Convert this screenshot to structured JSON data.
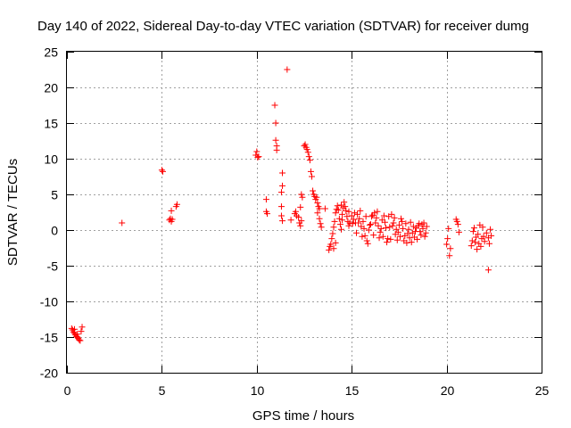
{
  "chart_data": {
    "type": "scatter",
    "title": "Day 140 of 2022, Sidereal Day-to-day VTEC variation (SDTVAR) for receiver dumg",
    "xlabel": "GPS time / hours",
    "ylabel": "SDTVAR / TECUs",
    "xlim": [
      0,
      25
    ],
    "ylim": [
      -20,
      25
    ],
    "xticks": [
      0,
      5,
      10,
      15,
      20,
      25
    ],
    "yticks": [
      -20,
      -15,
      -10,
      -5,
      0,
      5,
      10,
      15,
      20,
      25
    ],
    "grid": true,
    "marker": "+",
    "marker_color": "#ff0000",
    "series": [
      {
        "name": "dumg",
        "points": [
          [
            0.25,
            -13.8
          ],
          [
            0.3,
            -14.0
          ],
          [
            0.35,
            -14.3
          ],
          [
            0.4,
            -14.5
          ],
          [
            0.45,
            -14.7
          ],
          [
            0.5,
            -14.9
          ],
          [
            0.55,
            -15.0
          ],
          [
            0.6,
            -15.2
          ],
          [
            0.65,
            -15.4
          ],
          [
            0.7,
            -15.5
          ],
          [
            0.75,
            -14.2
          ],
          [
            0.8,
            -13.6
          ],
          [
            0.4,
            -13.9
          ],
          [
            0.55,
            -14.6
          ],
          [
            2.9,
            1.0
          ],
          [
            5.0,
            8.4
          ],
          [
            5.05,
            8.2
          ],
          [
            5.4,
            1.4
          ],
          [
            5.45,
            1.6
          ],
          [
            5.5,
            1.2
          ],
          [
            5.55,
            1.5
          ],
          [
            5.5,
            2.7
          ],
          [
            5.75,
            3.3
          ],
          [
            5.8,
            3.6
          ],
          [
            10.0,
            11.0
          ],
          [
            9.95,
            10.5
          ],
          [
            10.05,
            10.2
          ],
          [
            10.1,
            10.3
          ],
          [
            10.5,
            4.3
          ],
          [
            10.5,
            2.6
          ],
          [
            10.55,
            2.3
          ],
          [
            10.95,
            17.5
          ],
          [
            11.0,
            15.0
          ],
          [
            11.0,
            12.6
          ],
          [
            11.05,
            11.8
          ],
          [
            11.05,
            11.2
          ],
          [
            11.35,
            8.0
          ],
          [
            11.35,
            6.2
          ],
          [
            11.3,
            5.3
          ],
          [
            11.3,
            3.3
          ],
          [
            11.3,
            2.0
          ],
          [
            11.35,
            1.3
          ],
          [
            11.6,
            22.5
          ],
          [
            11.8,
            1.4
          ],
          [
            12.0,
            2.3
          ],
          [
            12.05,
            2.6
          ],
          [
            12.1,
            2.0
          ],
          [
            12.2,
            1.8
          ],
          [
            12.25,
            1.0
          ],
          [
            12.3,
            0.6
          ],
          [
            12.35,
            1.3
          ],
          [
            12.3,
            3.2
          ],
          [
            12.4,
            4.6
          ],
          [
            12.35,
            5.0
          ],
          [
            12.5,
            11.8
          ],
          [
            12.55,
            12.0
          ],
          [
            12.6,
            11.6
          ],
          [
            12.65,
            11.3
          ],
          [
            12.7,
            10.9
          ],
          [
            12.75,
            10.3
          ],
          [
            12.8,
            9.8
          ],
          [
            12.85,
            8.2
          ],
          [
            12.9,
            7.5
          ],
          [
            12.95,
            5.5
          ],
          [
            13.0,
            5.0
          ],
          [
            13.05,
            4.7
          ],
          [
            13.1,
            4.3
          ],
          [
            13.15,
            4.6
          ],
          [
            13.2,
            3.8
          ],
          [
            13.25,
            3.3
          ],
          [
            13.3,
            3.0
          ],
          [
            13.2,
            2.4
          ],
          [
            13.3,
            1.6
          ],
          [
            13.35,
            0.9
          ],
          [
            13.4,
            0.4
          ],
          [
            13.6,
            3.0
          ],
          [
            13.8,
            -2.8
          ],
          [
            13.85,
            -2.3
          ],
          [
            13.9,
            -2.0
          ],
          [
            13.95,
            -1.2
          ],
          [
            14.0,
            -0.5
          ],
          [
            14.05,
            0.4
          ],
          [
            14.1,
            1.2
          ],
          [
            14.15,
            2.4
          ],
          [
            14.2,
            2.9
          ],
          [
            14.25,
            3.4
          ],
          [
            14.3,
            2.8
          ],
          [
            14.35,
            1.6
          ],
          [
            14.4,
            0.8
          ],
          [
            14.45,
            0.1
          ],
          [
            14.5,
            1.4
          ],
          [
            14.55,
            3.1
          ],
          [
            14.6,
            3.9
          ],
          [
            14.65,
            3.3
          ],
          [
            14.7,
            2.7
          ],
          [
            14.75,
            1.9
          ],
          [
            14.8,
            1.2
          ],
          [
            14.85,
            0.6
          ],
          [
            14.9,
            1.0
          ],
          [
            15.0,
            2.0
          ],
          [
            15.1,
            1.5
          ],
          [
            15.2,
            1.0
          ],
          [
            15.3,
            2.2
          ],
          [
            15.4,
            1.6
          ],
          [
            15.5,
            0.5
          ],
          [
            15.6,
            1.2
          ],
          [
            15.7,
            -0.8
          ],
          [
            15.8,
            -1.5
          ],
          [
            15.9,
            0.0
          ],
          [
            16.0,
            0.8
          ],
          [
            16.1,
            2.1
          ],
          [
            16.2,
            2.4
          ],
          [
            16.3,
            1.7
          ],
          [
            16.4,
            0.6
          ],
          [
            16.5,
            -0.3
          ],
          [
            16.6,
            1.4
          ],
          [
            16.7,
            2.0
          ],
          [
            16.8,
            0.3
          ],
          [
            16.9,
            -1.2
          ],
          [
            17.0,
            0.4
          ],
          [
            17.1,
            2.2
          ],
          [
            17.2,
            1.0
          ],
          [
            17.3,
            -0.6
          ],
          [
            17.4,
            -1.4
          ],
          [
            17.5,
            0.7
          ],
          [
            17.6,
            1.6
          ],
          [
            17.7,
            0.2
          ],
          [
            17.8,
            -0.8
          ],
          [
            17.9,
            -1.8
          ],
          [
            18.0,
            0.1
          ],
          [
            18.1,
            1.1
          ],
          [
            18.2,
            -0.4
          ],
          [
            18.3,
            -1.0
          ],
          [
            18.4,
            0.3
          ],
          [
            18.5,
            0.6
          ],
          [
            18.6,
            -0.2
          ],
          [
            18.7,
            0.8
          ],
          [
            18.8,
            1.0
          ],
          [
            18.9,
            -0.4
          ],
          [
            20.0,
            -2.0
          ],
          [
            20.05,
            -1.2
          ],
          [
            20.1,
            0.2
          ],
          [
            20.15,
            -3.6
          ],
          [
            20.2,
            -2.6
          ],
          [
            20.5,
            1.5
          ],
          [
            20.55,
            1.2
          ],
          [
            20.6,
            0.8
          ],
          [
            20.65,
            -0.3
          ],
          [
            21.3,
            -2.2
          ],
          [
            21.35,
            -1.5
          ],
          [
            21.4,
            -0.2
          ],
          [
            21.45,
            0.3
          ],
          [
            21.5,
            -1.7
          ],
          [
            21.55,
            -1.0
          ],
          [
            21.6,
            -2.7
          ],
          [
            21.65,
            -0.6
          ],
          [
            21.7,
            -1.9
          ],
          [
            21.75,
            0.7
          ],
          [
            21.8,
            -2.3
          ],
          [
            21.85,
            -1.2
          ],
          [
            21.9,
            0.4
          ],
          [
            21.95,
            -0.9
          ],
          [
            22.0,
            -1.6
          ],
          [
            22.1,
            -0.4
          ],
          [
            22.2,
            -1.1
          ],
          [
            22.25,
            -1.9
          ],
          [
            22.3,
            0.1
          ],
          [
            22.35,
            -0.8
          ],
          [
            22.2,
            -5.6
          ],
          [
            14.05,
            -2.6
          ],
          [
            14.15,
            -1.8
          ],
          [
            14.45,
            3.5
          ],
          [
            14.5,
            2.2
          ],
          [
            14.85,
            2.6
          ],
          [
            15.05,
            0.9
          ],
          [
            15.15,
            2.4
          ],
          [
            15.25,
            -0.4
          ],
          [
            15.35,
            1.0
          ],
          [
            15.45,
            2.7
          ],
          [
            15.55,
            -0.9
          ],
          [
            15.65,
            0.2
          ],
          [
            15.75,
            1.9
          ],
          [
            15.85,
            -1.9
          ],
          [
            15.95,
            0.7
          ],
          [
            16.05,
            1.9
          ],
          [
            16.15,
            -0.7
          ],
          [
            16.25,
            1.0
          ],
          [
            16.35,
            2.6
          ],
          [
            16.45,
            -1.1
          ],
          [
            16.55,
            0.2
          ],
          [
            16.65,
            -0.9
          ],
          [
            16.75,
            1.1
          ],
          [
            16.85,
            -1.7
          ],
          [
            16.95,
            1.9
          ],
          [
            17.05,
            -1.3
          ],
          [
            17.15,
            0.6
          ],
          [
            17.25,
            1.7
          ],
          [
            17.35,
            0.1
          ],
          [
            17.45,
            -0.3
          ],
          [
            17.55,
            -0.9
          ],
          [
            17.65,
            1.2
          ],
          [
            17.75,
            -1.5
          ],
          [
            17.85,
            0.9
          ],
          [
            17.95,
            -0.5
          ],
          [
            18.05,
            -1.1
          ],
          [
            18.15,
            -1.7
          ],
          [
            18.25,
            0.5
          ],
          [
            18.35,
            -0.2
          ],
          [
            18.45,
            -1.3
          ],
          [
            18.55,
            0.9
          ],
          [
            18.65,
            -0.7
          ],
          [
            18.75,
            0.2
          ],
          [
            18.85,
            -0.9
          ],
          [
            18.95,
            0.5
          ]
        ]
      }
    ]
  }
}
